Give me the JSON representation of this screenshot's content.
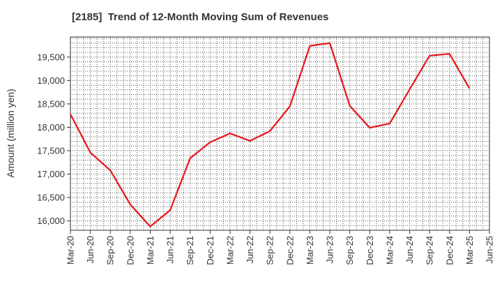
{
  "chart_data": {
    "type": "line",
    "title": "[2185]  Trend of 12-Month Moving Sum of Revenues",
    "xlabel": "",
    "ylabel": "Amount (million yen)",
    "x_tick_labels": [
      "Mar-20",
      "Jun-20",
      "Sep-20",
      "Dec-20",
      "Mar-21",
      "Jun-21",
      "Sep-21",
      "Dec-21",
      "Mar-22",
      "Jun-22",
      "Sep-22",
      "Dec-22",
      "Mar-23",
      "Jun-23",
      "Sep-23",
      "Dec-23",
      "Mar-24",
      "Jun-24",
      "Sep-24",
      "Dec-24",
      "Mar-25",
      "Jun-25"
    ],
    "y_ticks": [
      16000,
      16500,
      17000,
      17500,
      18000,
      18500,
      19000,
      19500
    ],
    "y_tick_labels": [
      "16,000",
      "16,500",
      "17,000",
      "17,500",
      "18,000",
      "18,500",
      "19,000",
      "19,500"
    ],
    "ylim": [
      15800,
      19930
    ],
    "grid": true,
    "series": [
      {
        "color": "#e8141b",
        "x": [
          "Mar-20",
          "Jun-20",
          "Sep-20",
          "Dec-20",
          "Mar-21",
          "Jun-21",
          "Sep-21",
          "Dec-21",
          "Mar-22",
          "Jun-22",
          "Sep-22",
          "Dec-22",
          "Mar-23",
          "Jun-23",
          "Sep-23",
          "Dec-23",
          "Mar-24",
          "Jun-24",
          "Sep-24",
          "Dec-24",
          "Mar-25"
        ],
        "values": [
          18280,
          17460,
          17080,
          16350,
          15880,
          16230,
          17340,
          17680,
          17870,
          17710,
          17920,
          18450,
          19740,
          19800,
          18460,
          17990,
          18080,
          18810,
          19530,
          19570,
          18830
        ]
      }
    ]
  }
}
